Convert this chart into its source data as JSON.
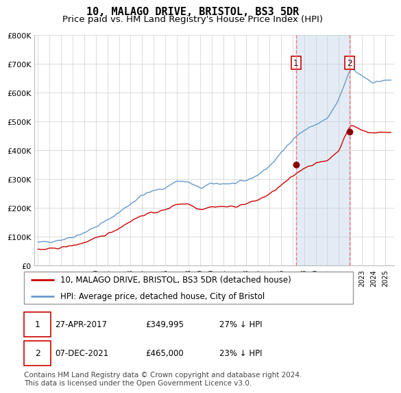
{
  "title": "10, MALAGO DRIVE, BRISTOL, BS3 5DR",
  "subtitle": "Price paid vs. HM Land Registry's House Price Index (HPI)",
  "ylim": [
    0,
    800000
  ],
  "yticks": [
    0,
    100000,
    200000,
    300000,
    400000,
    500000,
    600000,
    700000,
    800000
  ],
  "ytick_labels": [
    "£0",
    "£100K",
    "£200K",
    "£300K",
    "£400K",
    "£500K",
    "£600K",
    "£700K",
    "£800K"
  ],
  "hpi_color": "#6699cc",
  "price_color": "#cc0000",
  "vline_color": "#ff6666",
  "shade_color": "#ddeeff",
  "background_color": "#ffffff",
  "grid_color": "#cccccc",
  "legend_label_price": "10, MALAGO DRIVE, BRISTOL, BS3 5DR (detached house)",
  "legend_label_hpi": "HPI: Average price, detached house, City of Bristol",
  "sale1_date": "27-APR-2017",
  "sale1_price": "£349,995",
  "sale1_pct": "27% ↓ HPI",
  "sale2_date": "07-DEC-2021",
  "sale2_price": "£465,000",
  "sale2_pct": "23% ↓ HPI",
  "footer": "Contains HM Land Registry data © Crown copyright and database right 2024.\nThis data is licensed under the Open Government Licence v3.0.",
  "sale1_x": 2017.31,
  "sale1_y": 349995,
  "sale2_x": 2021.92,
  "sale2_y": 465000,
  "title_fontsize": 11,
  "subtitle_fontsize": 9.5,
  "tick_fontsize": 8,
  "legend_fontsize": 9,
  "footer_fontsize": 7.5,
  "xlim_left": 1994.7,
  "xlim_right": 2025.8
}
